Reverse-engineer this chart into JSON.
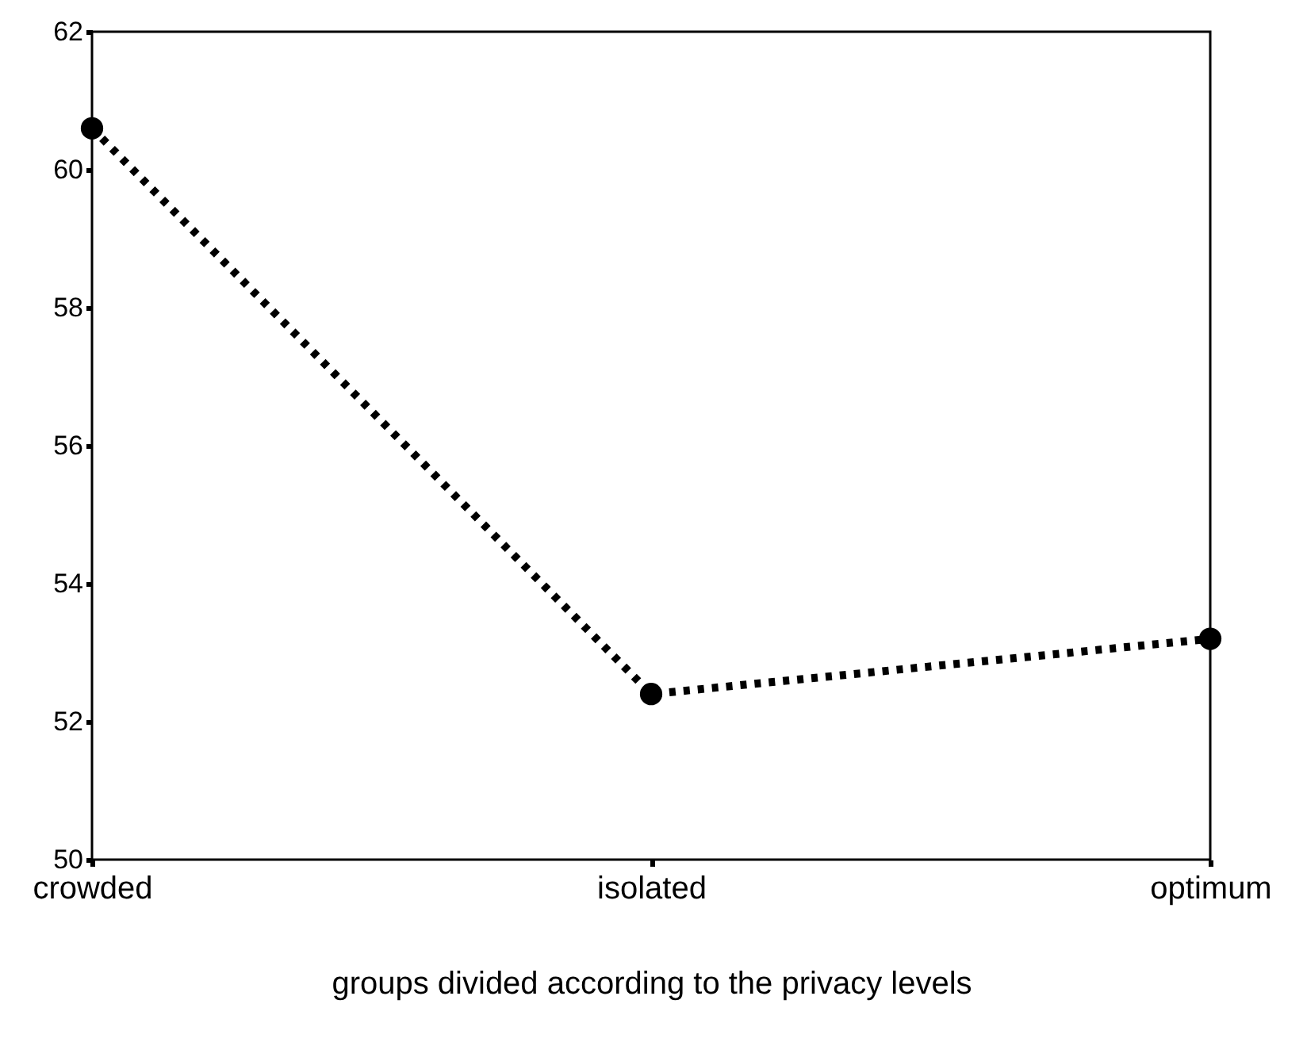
{
  "chart_data": {
    "type": "line",
    "xlabel": "groups divided according to the privacy levels",
    "categories": [
      "crowded",
      "isolated",
      "optimum"
    ],
    "series": [
      {
        "color": "#000000",
        "values": [
          60.6,
          52.4,
          53.2
        ]
      }
    ],
    "ylim": [
      50,
      62
    ],
    "yticks": [
      50,
      52,
      54,
      56,
      58,
      60,
      62
    ],
    "grid": false,
    "marker": "circle",
    "line_style": "dotted"
  }
}
